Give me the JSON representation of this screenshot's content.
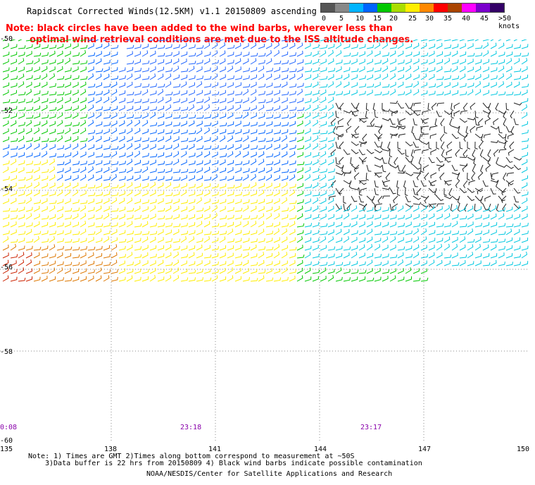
{
  "header": {
    "title": "Rapidscat Corrected Winds(12.5KM) v1.1 20150809 ascending",
    "note_line1": "Note: black circles have been added to the wind barbs, wherever less than",
    "note_line2": "optimal wind retrieval conditions are met due to the ISS altitude changes."
  },
  "legend": {
    "labels": [
      "0",
      "5",
      "10",
      "15",
      "20",
      "25",
      "30",
      "35",
      "40",
      "45",
      ">50 knots"
    ],
    "colors": [
      "#555555",
      "#888888",
      "#00b4ff",
      "#0064ff",
      "#00c800",
      "#aadd00",
      "#ffee00",
      "#ff8800",
      "#ff0000",
      "#aa4400",
      "#ff00ff",
      "#7a00cc",
      "#330066"
    ]
  },
  "axes": {
    "lat_labels": [
      "-50",
      "-52",
      "-54",
      "-56",
      "-58",
      "-60"
    ],
    "lon_labels": [
      "135",
      "138",
      "141",
      "144",
      "147",
      "150"
    ]
  },
  "times": [
    "0:08",
    "23:18",
    "23:17"
  ],
  "footer": {
    "line1": "Note: 1) Times are GMT 2)Times along bottom correspond to measurement at ~50S",
    "line2": "3)Data buffer is 22 hrs from 20150809 4) Black wind barbs indicate possible contamination",
    "credit": "NOAA/NESDIS/Center for Satellite Applications and Research"
  }
}
